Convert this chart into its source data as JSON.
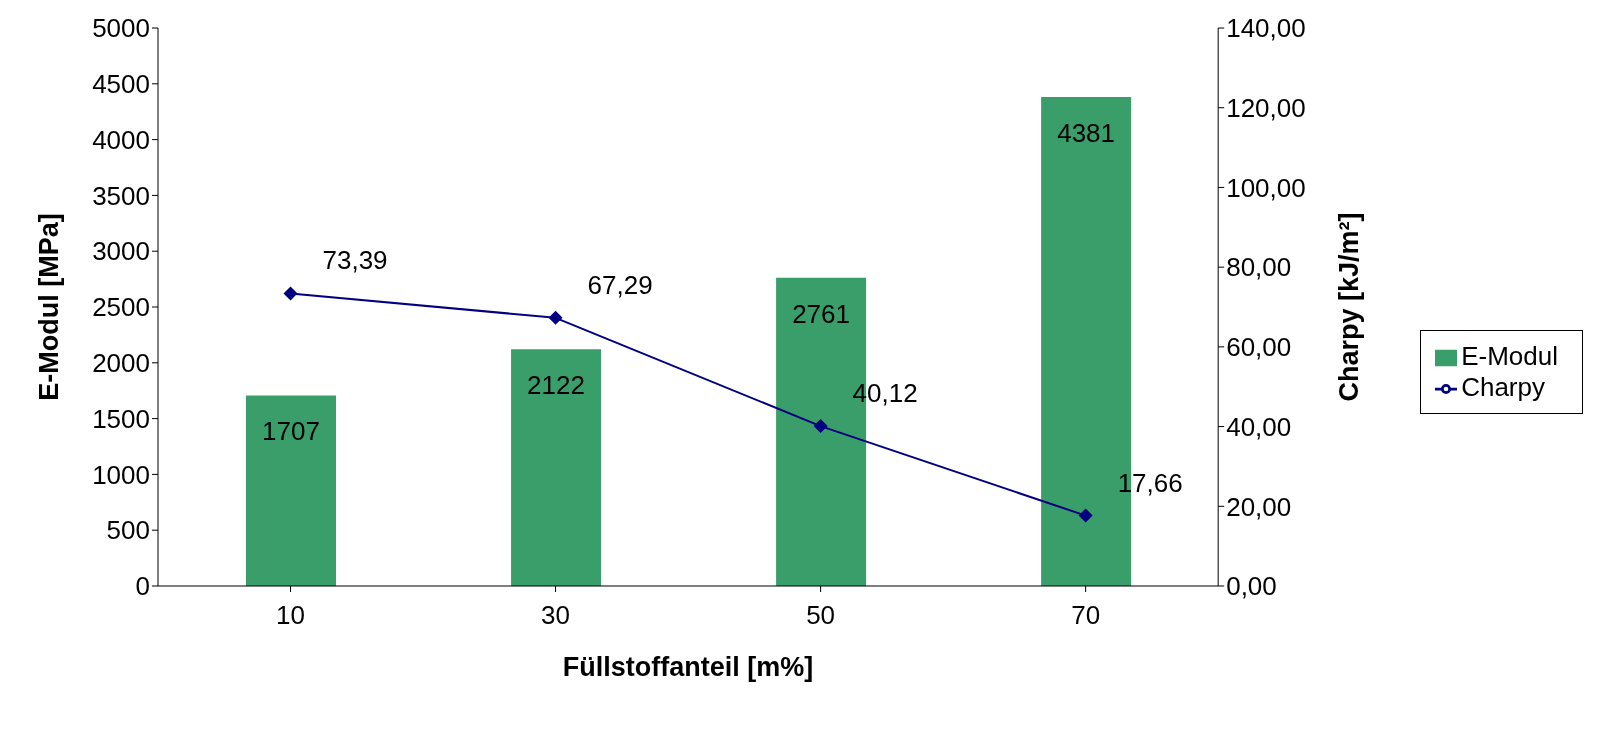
{
  "chart_data": {
    "type": "bar",
    "categories": [
      "10",
      "30",
      "50",
      "70"
    ],
    "xlabel": "Füllstoffanteil [m%]",
    "ylabel": "E-Modul [MPa]",
    "y2label": "Charpy [kJ/m²]",
    "series": [
      {
        "name": "E-Modul",
        "color": "#3a9e6a",
        "values": [
          1707,
          2122,
          2761,
          4381
        ],
        "value_labels": [
          "1707",
          "2122",
          "2761",
          "4381"
        ]
      },
      {
        "name": "Charpy",
        "type": "line",
        "axis": "y2",
        "color": "#000080",
        "marker": "diamond",
        "values": [
          73.39,
          67.29,
          40.12,
          17.66
        ],
        "value_labels": [
          "73,39",
          "67,29",
          "40,12",
          "17,66"
        ]
      }
    ],
    "ylim": [
      0,
      5000
    ],
    "yticks": [
      0,
      500,
      1000,
      1500,
      2000,
      2500,
      3000,
      3500,
      4000,
      4500,
      5000
    ],
    "y2lim": [
      0,
      140
    ],
    "y2ticks": [
      {
        "value": 0,
        "label": "0,00"
      },
      {
        "value": 20,
        "label": "20,00"
      },
      {
        "value": 40,
        "label": "40,00"
      },
      {
        "value": 60,
        "label": "60,00"
      },
      {
        "value": 80,
        "label": "80,00"
      },
      {
        "value": 100,
        "label": "100,00"
      },
      {
        "value": 120,
        "label": "120,00"
      },
      {
        "value": 140,
        "label": "140,00"
      }
    ],
    "grid": false,
    "legend": "right"
  }
}
